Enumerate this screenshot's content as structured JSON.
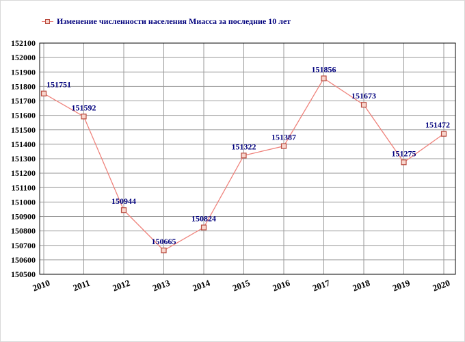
{
  "legend": {
    "label": "Изменение численности населения Миасса за последние 10 лет"
  },
  "chart_data": {
    "type": "line",
    "title": "Изменение численности населения Миасса за последние 10 лет",
    "categories": [
      "2010",
      "2011",
      "2012",
      "2013",
      "2014",
      "2015",
      "2016",
      "2017",
      "2018",
      "2019",
      "2020"
    ],
    "values": [
      151751,
      151592,
      150944,
      150665,
      150824,
      151322,
      151387,
      151856,
      151673,
      151275,
      151472
    ],
    "point_labels": [
      "151751",
      "151592",
      "150944",
      "150665",
      "150824",
      "151322",
      "151387",
      "151856",
      "151673",
      "151275",
      "151472"
    ],
    "xlabel": "",
    "ylabel": "",
    "ylim": [
      150500,
      152100
    ],
    "ytick_step": 100,
    "grid": true,
    "legend_position": "top-left",
    "marker": "square",
    "colors": {
      "line": "#ef837c",
      "marker_border": "#b84a3e",
      "marker_fill": "#f8d5cc",
      "point_label": "#00007d",
      "grid": "#9a9a9a",
      "axis_text": "#000000",
      "plot_border": "#000000",
      "legend_text": "#00007d"
    }
  }
}
